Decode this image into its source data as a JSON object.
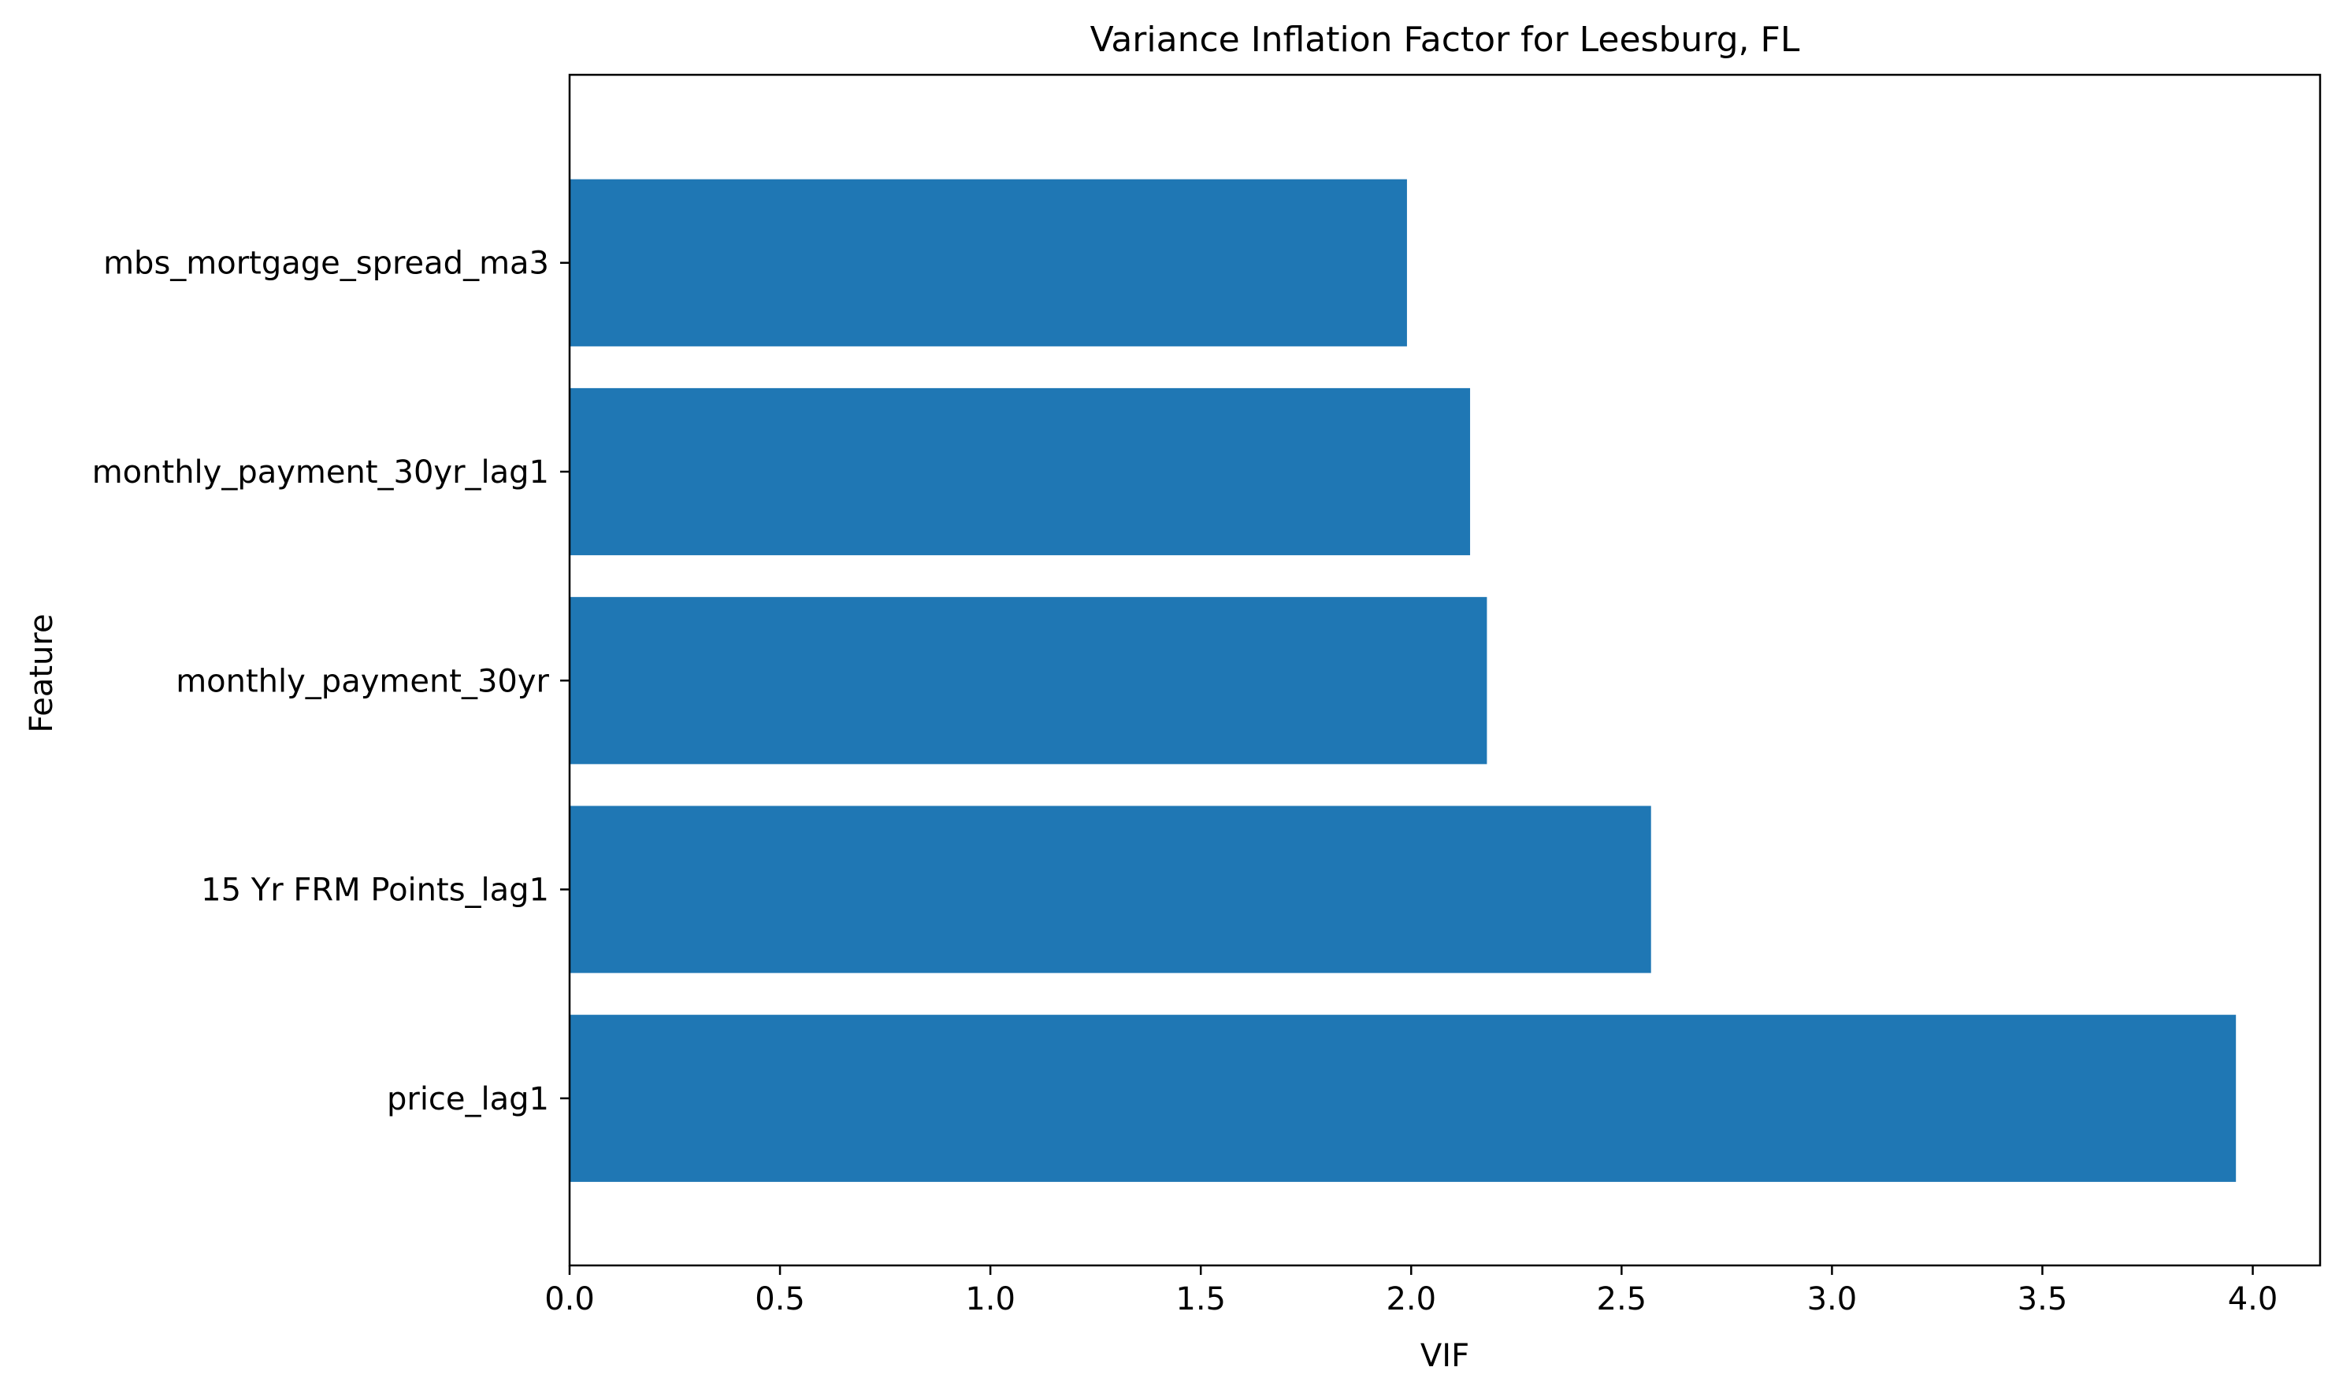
{
  "chart_data": {
    "type": "bar",
    "orientation": "horizontal",
    "title": "Variance Inflation Factor for Leesburg, FL",
    "xlabel": "VIF",
    "ylabel": "Feature",
    "categories": [
      "price_lag1",
      "15 Yr FRM Points_lag1",
      "monthly_payment_30yr",
      "monthly_payment_30yr_lag1",
      "mbs_mortgage_spread_ma3"
    ],
    "values": [
      3.96,
      2.57,
      2.18,
      2.14,
      1.99
    ],
    "xlim": [
      0,
      4.16
    ],
    "xticks": [
      0.0,
      0.5,
      1.0,
      1.5,
      2.0,
      2.5,
      3.0,
      3.5,
      4.0
    ],
    "xtick_labels": [
      "0.0",
      "0.5",
      "1.0",
      "1.5",
      "2.0",
      "2.5",
      "3.0",
      "3.5",
      "4.0"
    ],
    "bar_color": "#1f77b4",
    "grid": false,
    "legend": false
  }
}
